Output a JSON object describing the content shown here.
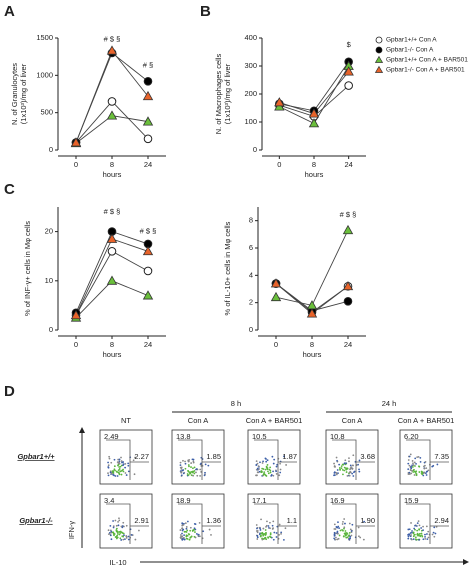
{
  "chart_data": [
    {
      "type": "line",
      "panel": "A",
      "ylabel": [
        "N. of Granulocytes",
        "(1x10³)/mg of liver"
      ],
      "xlabel": "hours",
      "categories": [
        "0",
        "8",
        "24"
      ],
      "ylim": [
        0,
        1500
      ],
      "yticks": [
        0,
        500,
        1000,
        1500
      ],
      "series": [
        {
          "color": "#ffffff",
          "marker": "circle",
          "values": [
            100,
            650,
            150
          ]
        },
        {
          "color": "#000000",
          "marker": "circle",
          "values": [
            100,
            1300,
            920
          ]
        },
        {
          "color": "#6abf3b",
          "marker": "triangle",
          "values": [
            90,
            460,
            380
          ]
        },
        {
          "color": "#e8632a",
          "marker": "triangle",
          "values": [
            100,
            1330,
            720
          ]
        }
      ],
      "annotations": [
        {
          "x": "8",
          "text": "# $ §",
          "y": 1480
        },
        {
          "x": "24",
          "text": "# §",
          "y": 1130
        }
      ]
    },
    {
      "type": "line",
      "panel": "B",
      "ylabel": [
        "N. of Macrophages cells",
        "(1x10³)/mg of liver"
      ],
      "xlabel": "hours",
      "categories": [
        "0",
        "8",
        "24"
      ],
      "ylim": [
        0,
        400
      ],
      "yticks": [
        0,
        100,
        200,
        300,
        400
      ],
      "legend": "right",
      "series": [
        {
          "name": "Gpbar1+/+ Con A",
          "color": "#ffffff",
          "marker": "circle",
          "values": [
            160,
            120,
            230
          ]
        },
        {
          "name": "Gpbar1-/- Con A",
          "color": "#000000",
          "marker": "circle",
          "values": [
            165,
            140,
            315
          ]
        },
        {
          "name": "Gpbar1+/+ Con A + BAR501",
          "color": "#6abf3b",
          "marker": "triangle",
          "values": [
            155,
            95,
            300
          ]
        },
        {
          "name": "Gpbar1-/- Con A + BAR501",
          "color": "#e8632a",
          "marker": "triangle",
          "values": [
            170,
            130,
            280
          ]
        }
      ],
      "annotations": [
        {
          "x": "24",
          "text": "$",
          "y": 375
        }
      ]
    },
    {
      "type": "line",
      "panel": "C",
      "ylabel": [
        "% of INF-γ+ cells in Mφ cells"
      ],
      "xlabel": "hours",
      "categories": [
        "0",
        "8",
        "24"
      ],
      "ylim": [
        0,
        25
      ],
      "yticks": [
        0,
        10,
        20
      ],
      "series": [
        {
          "color": "#ffffff",
          "marker": "circle",
          "values": [
            3,
            16,
            12
          ]
        },
        {
          "color": "#000000",
          "marker": "circle",
          "values": [
            3.5,
            20,
            17.5
          ]
        },
        {
          "color": "#6abf3b",
          "marker": "triangle",
          "values": [
            2.5,
            10,
            7
          ]
        },
        {
          "color": "#e8632a",
          "marker": "triangle",
          "values": [
            3,
            18.5,
            16
          ]
        }
      ],
      "annotations": [
        {
          "x": "8",
          "text": "# $ §",
          "y": 24
        },
        {
          "x": "24",
          "text": "# $ §",
          "y": 20
        }
      ]
    },
    {
      "type": "line",
      "ylabel": [
        "% of IL-10+ cells in Mφ cells"
      ],
      "xlabel": "hours",
      "categories": [
        "0",
        "8",
        "24"
      ],
      "ylim": [
        0,
        9
      ],
      "yticks": [
        0,
        2,
        4,
        6,
        8
      ],
      "series": [
        {
          "color": "#ffffff",
          "marker": "circle",
          "values": [
            3.4,
            1.3,
            3.2
          ]
        },
        {
          "color": "#000000",
          "marker": "circle",
          "values": [
            3.4,
            1.4,
            2.1
          ]
        },
        {
          "color": "#6abf3b",
          "marker": "triangle",
          "values": [
            2.4,
            1.8,
            7.3
          ]
        },
        {
          "color": "#e8632a",
          "marker": "triangle",
          "values": [
            3.4,
            1.2,
            3.2
          ]
        }
      ],
      "annotations": [
        {
          "x": "24",
          "text": "# $ §",
          "y": 8.4
        }
      ]
    }
  ],
  "flow": {
    "panel": "D",
    "groups": [
      "8 h",
      "24 h"
    ],
    "columns": [
      "NT",
      "Con A",
      "Con A + BAR501",
      "Con A",
      "Con A + BAR501"
    ],
    "rows": [
      {
        "label": "Gpbar1+/+",
        "values": [
          [
            "2.49",
            "2.27"
          ],
          [
            "13.8",
            "1.85"
          ],
          [
            "10.5",
            "1.87"
          ],
          [
            "10.8",
            "3.68"
          ],
          [
            "6.20",
            "7.35"
          ]
        ]
      },
      {
        "label": "Gpbar1-/-",
        "values": [
          [
            "3.4",
            "2.91"
          ],
          [
            "18.9",
            "1.36"
          ],
          [
            "17.1",
            "1.1"
          ],
          [
            "16.9",
            "1.90"
          ],
          [
            "15.9",
            "2.94"
          ]
        ]
      }
    ],
    "y_axis_label": "IFN-γ",
    "x_axis_label": "IL-10"
  }
}
